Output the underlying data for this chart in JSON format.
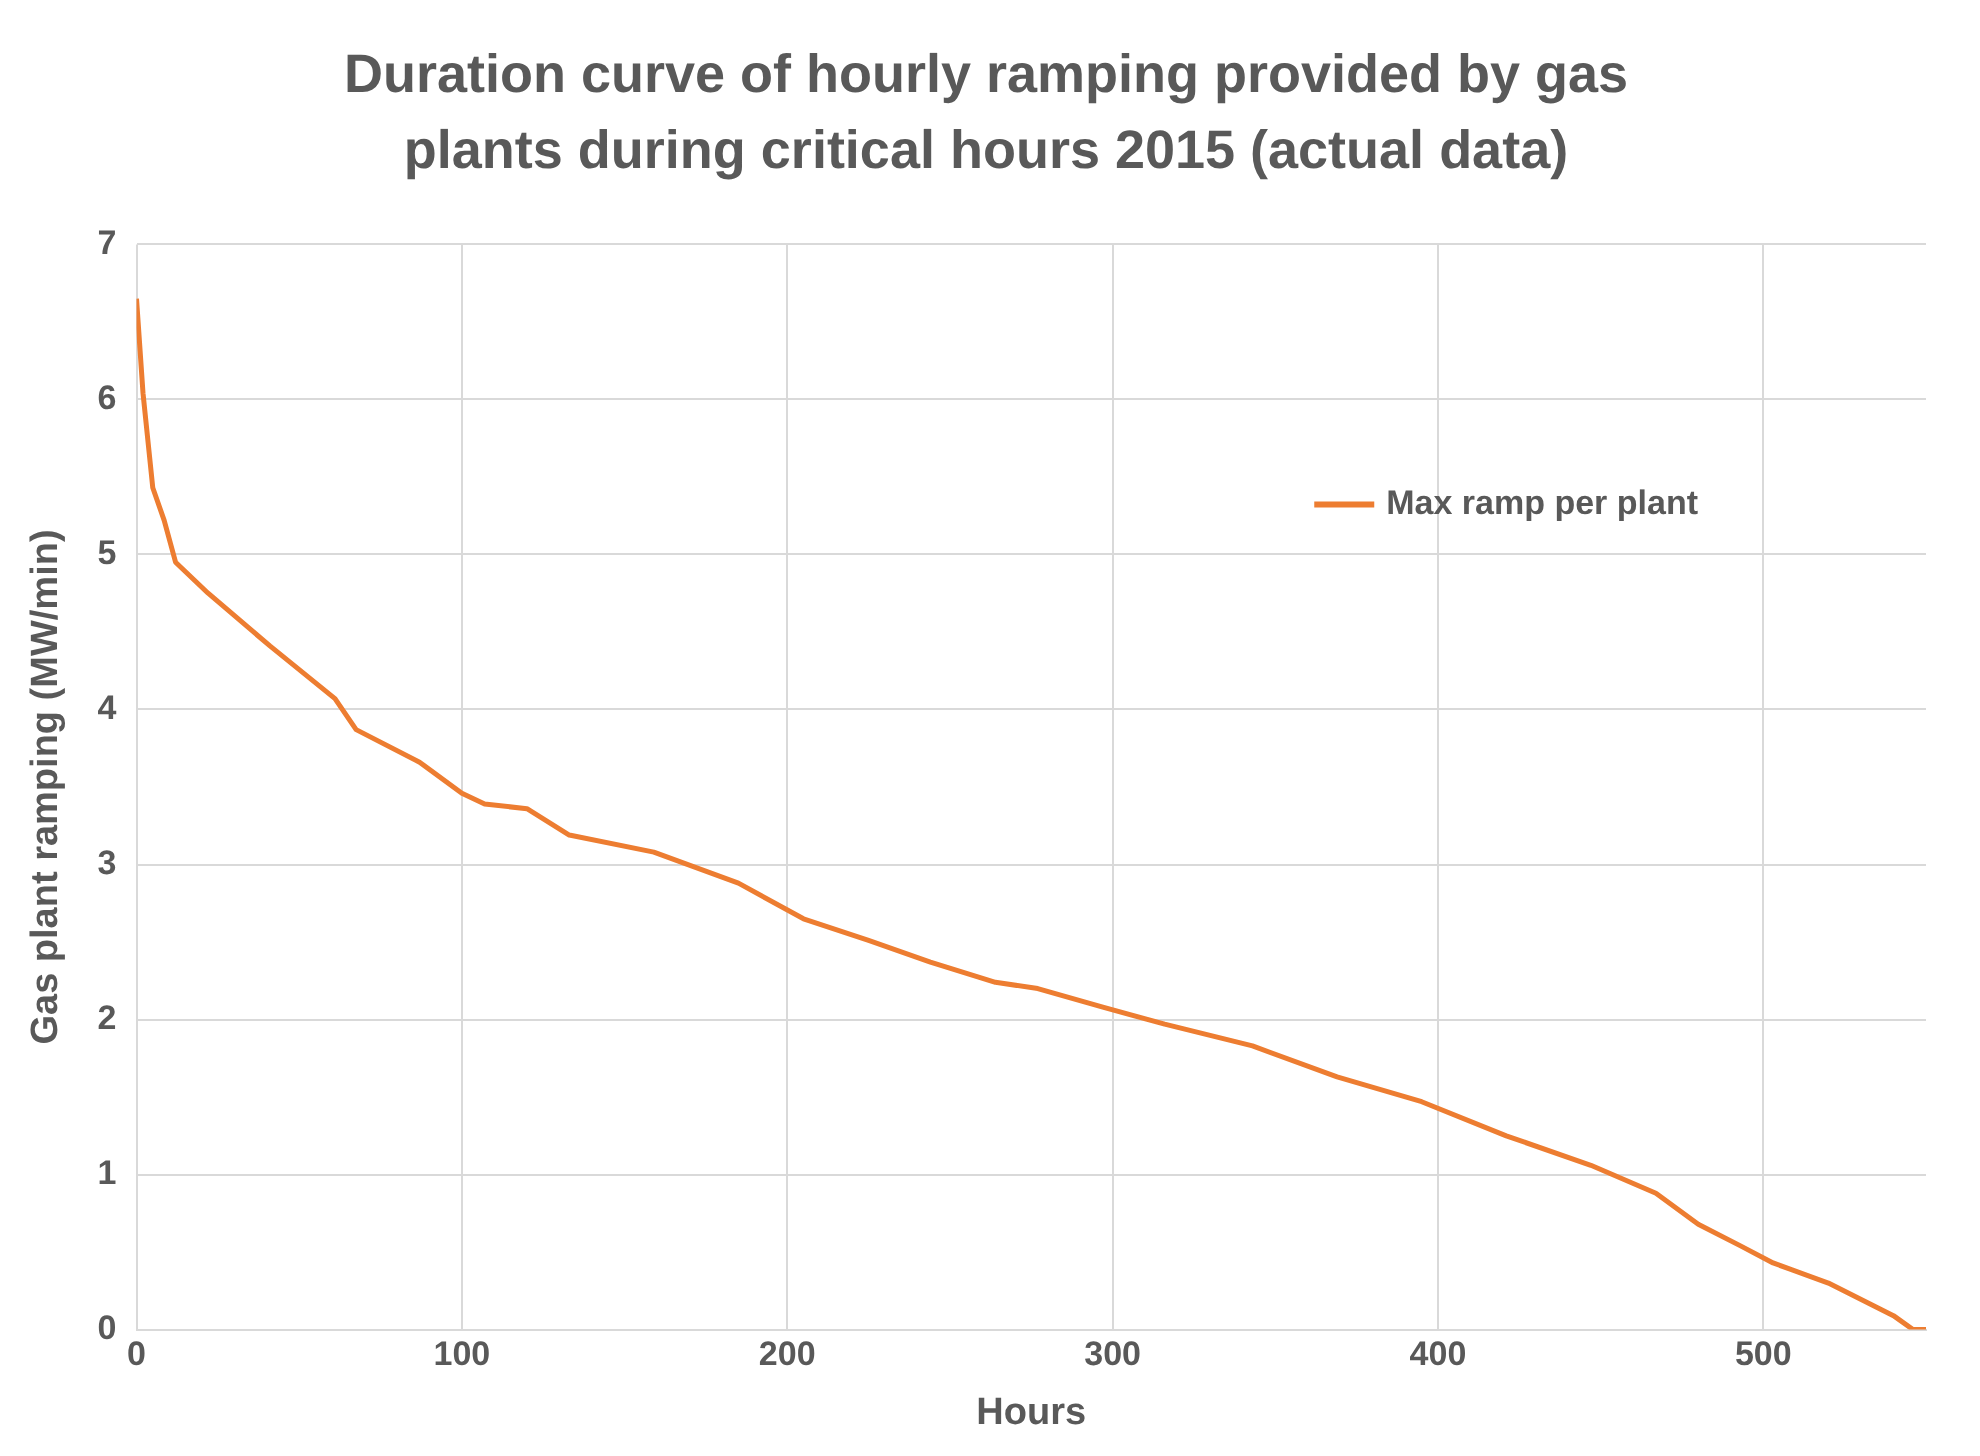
{
  "chart_data": {
    "type": "line",
    "title": "Duration curve of hourly ramping provided by gas plants during critical hours 2015 (actual data)",
    "xlabel": "Hours",
    "ylabel": "Gas plant ramping (MW/min)",
    "x": [
      0,
      2,
      5,
      8.5,
      12,
      22,
      41,
      61,
      67.5,
      87,
      100,
      107,
      120,
      133,
      159,
      185,
      205,
      225,
      244,
      264,
      277,
      297,
      316,
      343,
      369,
      395,
      421,
      447,
      467,
      480,
      493,
      503,
      520,
      540,
      546,
      550
    ],
    "series": [
      {
        "name": "Max ramp per plant",
        "color": "#ed7d31",
        "values": [
          6.65,
          6.04,
          5.43,
          5.22,
          4.95,
          4.75,
          4.41,
          4.07,
          3.87,
          3.66,
          3.46,
          3.39,
          3.36,
          3.19,
          3.08,
          2.88,
          2.65,
          2.51,
          2.37,
          2.24,
          2.2,
          2.08,
          1.97,
          1.83,
          1.63,
          1.47,
          1.25,
          1.06,
          0.88,
          0.68,
          0.54,
          0.43,
          0.3,
          0.09,
          0,
          0
        ]
      }
    ],
    "xlim": [
      0,
      550
    ],
    "xticks": [
      0,
      100,
      200,
      300,
      400,
      500
    ],
    "ylim": [
      0,
      7
    ],
    "yticks": [
      0,
      1,
      2,
      3,
      4,
      5,
      6,
      7
    ],
    "grid": true,
    "legend": "top right",
    "marker": "none",
    "line_style": "solid"
  }
}
